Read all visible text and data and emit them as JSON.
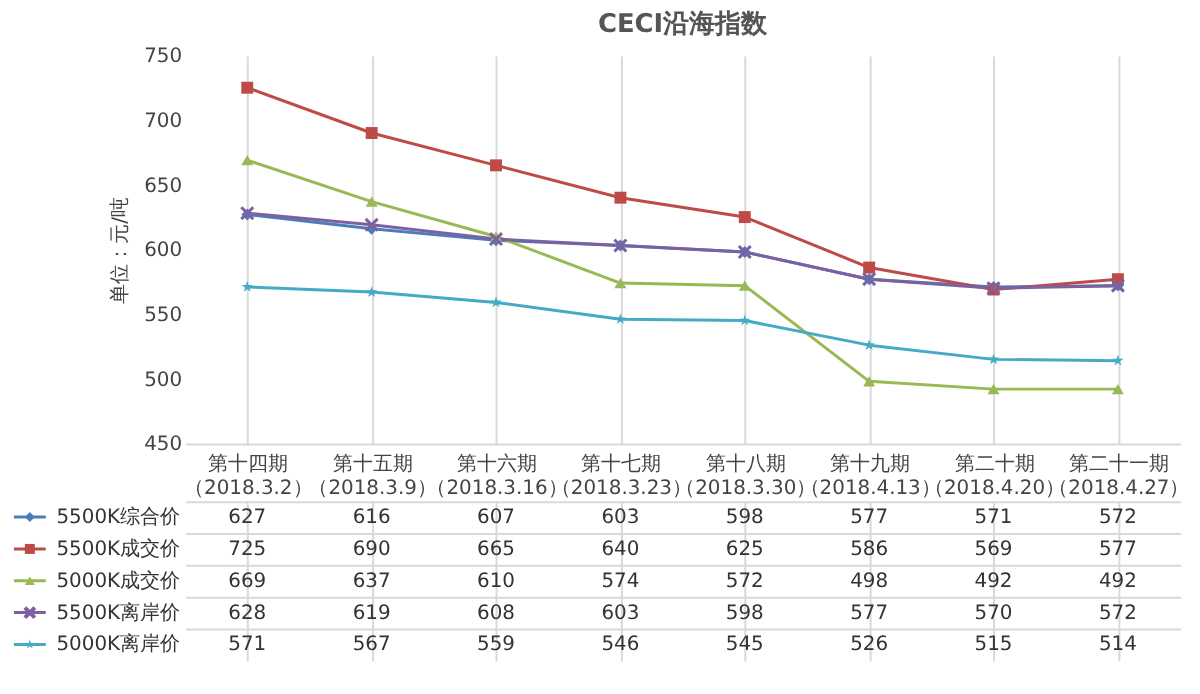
{
  "chart_data": {
    "type": "line",
    "title": "CECI沿海指数",
    "ylabel": "单位：元/吨",
    "categories": [
      "第十四期（2018.3.2）",
      "第十五期（2018.3.9）",
      "第十六期（2018.3.16）",
      "第十七期（2018.3.23）",
      "第十八期（2018.3.30）",
      "第十九期（2018.4.13）",
      "第二十期（2018.4.20）",
      "第二十一期（2018.4.27）"
    ],
    "series": [
      {
        "name": "5500K综合价",
        "color": "#4a7ebb",
        "marker": "diamond",
        "values": [
          627,
          616,
          607,
          603,
          598,
          577,
          571,
          572
        ]
      },
      {
        "name": "5500K成交价",
        "color": "#be4b48",
        "marker": "square",
        "values": [
          725,
          690,
          665,
          640,
          625,
          586,
          569,
          577
        ]
      },
      {
        "name": "5000K成交价",
        "color": "#98b954",
        "marker": "triangle",
        "values": [
          669,
          637,
          610,
          574,
          572,
          498,
          492,
          492
        ]
      },
      {
        "name": "5500K离岸价",
        "color": "#7d60a0",
        "marker": "cross",
        "values": [
          628,
          619,
          608,
          603,
          598,
          577,
          570,
          572
        ]
      },
      {
        "name": "5000K离岸价",
        "color": "#46aac5",
        "marker": "star",
        "values": [
          571,
          567,
          559,
          546,
          545,
          526,
          515,
          514
        ]
      }
    ],
    "ylim": [
      450,
      750
    ],
    "yticks": [
      450,
      500,
      550,
      600,
      650,
      700,
      750
    ],
    "grid": "x",
    "legend": "bottom",
    "data_labels": true,
    "line_style": "solid"
  }
}
